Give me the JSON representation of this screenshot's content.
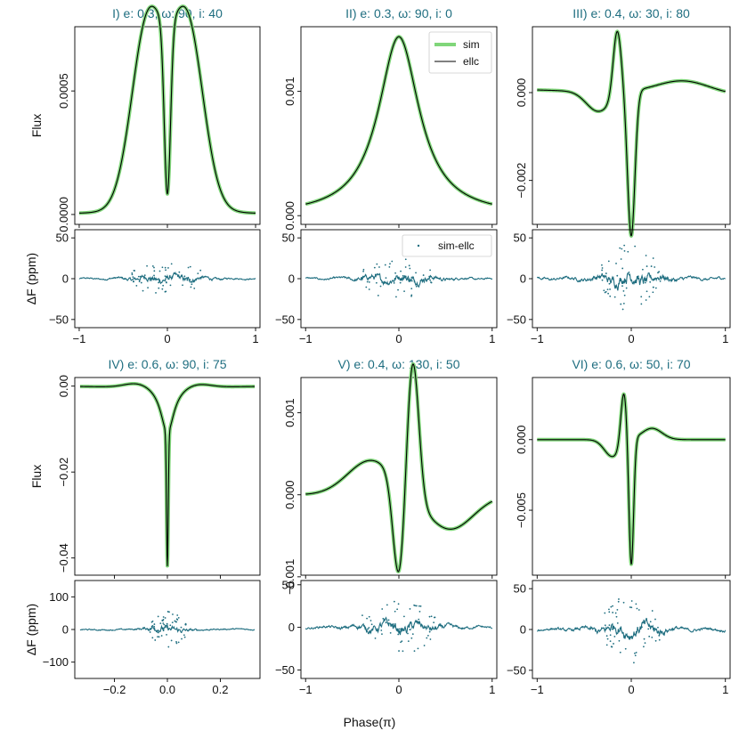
{
  "figure": {
    "xlabel": "Phase(π)",
    "colors": {
      "sim": "#80d67a",
      "ellc": "#000000",
      "resid": "#1f6e80",
      "title": "#1f6e80"
    }
  },
  "chart_data": [
    {
      "type": "line",
      "title": "I) e: 0.3, ω: 90, i: 40",
      "ylabel": "Flux",
      "xlim": [
        -1.05,
        1.05
      ],
      "ylim": [
        -4e-05,
        0.00076
      ],
      "yticks": [
        {
          "v": 0.0,
          "label": "0.0000"
        },
        {
          "v": 0.0005,
          "label": "0.0005"
        }
      ],
      "xticks": [
        {
          "v": -1,
          "label": "−1"
        },
        {
          "v": 0,
          "label": "0"
        },
        {
          "v": 1,
          "label": "1"
        }
      ],
      "series": [
        {
          "name": "sim",
          "shape": "double_peak",
          "x": [
            -1.0,
            0.0,
            1.0
          ],
          "y": [
            0.0,
            2e-05,
            0.0
          ]
        },
        {
          "name": "ellc",
          "shape": "double_peak",
          "x": [
            -1.0,
            0.0,
            1.0
          ],
          "y": [
            0.0,
            2e-05,
            0.0
          ]
        }
      ],
      "peaks": [
        {
          "x": -0.22,
          "y": 0.00073
        },
        {
          "x": 0.22,
          "y": 0.00073
        }
      ],
      "residual": {
        "ylabel": "ΔF (ppm)",
        "ylim": [
          -60,
          60
        ],
        "yticks": [
          -50,
          0,
          50
        ],
        "amplitude": 10,
        "spread": 0.45
      }
    },
    {
      "type": "line",
      "title": "II) e: 0.3, ω: 90, i: 0",
      "ylabel": "",
      "xlim": [
        -1.05,
        1.05
      ],
      "ylim": [
        -7e-05,
        0.00152
      ],
      "yticks": [
        {
          "v": 0.0,
          "label": "0.000"
        },
        {
          "v": 0.001,
          "label": "0.001"
        }
      ],
      "xticks": [
        {
          "v": -1,
          "label": "−1"
        },
        {
          "v": 0,
          "label": "0"
        },
        {
          "v": 1,
          "label": "1"
        }
      ],
      "series": [
        {
          "name": "sim",
          "shape": "single_peak",
          "x": [
            -1.0,
            0.0,
            1.0
          ],
          "y": [
            0.0,
            0.00144,
            0.0
          ]
        },
        {
          "name": "ellc",
          "shape": "single_peak",
          "x": [
            -1.0,
            0.0,
            1.0
          ],
          "y": [
            0.0,
            0.00144,
            0.0
          ]
        }
      ],
      "legend": {
        "entries": [
          "sim",
          "ellc"
        ],
        "placement": "top-right"
      },
      "residual": {
        "ylabel": "",
        "ylim": [
          -60,
          60
        ],
        "yticks": [
          -50,
          0,
          50
        ],
        "amplitude": 12,
        "spread": 0.45,
        "legend": "sim-ellc"
      }
    },
    {
      "type": "line",
      "title": "III) e: 0.4, ω: 30, i: 80",
      "ylabel": "",
      "xlim": [
        -1.05,
        1.05
      ],
      "ylim": [
        -0.003,
        0.0015
      ],
      "yticks": [
        {
          "v": 0.0,
          "label": "0.000"
        },
        {
          "v": -0.002,
          "label": "−0.002"
        }
      ],
      "xticks": [
        {
          "v": -1,
          "label": "−1"
        },
        {
          "v": 0,
          "label": "0"
        },
        {
          "v": 1,
          "label": "1"
        }
      ],
      "series": [
        {
          "name": "sim",
          "shape": "heartbeat_iii",
          "x": [
            -1.0,
            -0.15,
            0.0,
            1.0
          ],
          "y": [
            0.0,
            0.0012,
            -0.0028,
            0.0
          ]
        },
        {
          "name": "ellc",
          "shape": "heartbeat_iii",
          "x": [
            -1.0,
            -0.15,
            0.0,
            1.0
          ],
          "y": [
            0.0,
            0.0012,
            -0.0028,
            0.0
          ]
        }
      ],
      "residual": {
        "ylabel": "",
        "ylim": [
          -60,
          60
        ],
        "yticks": [
          -50,
          0,
          50
        ],
        "amplitude": 20,
        "spread": 0.35
      }
    },
    {
      "type": "line",
      "title": "IV) e: 0.6, ω: 90, i: 75",
      "ylabel": "Flux",
      "xlim": [
        -0.35,
        0.35
      ],
      "ylim": [
        -0.044,
        0.002
      ],
      "yticks": [
        {
          "v": 0.0,
          "label": "0.00"
        },
        {
          "v": -0.02,
          "label": "−0.02"
        },
        {
          "v": -0.04,
          "label": "−0.04"
        }
      ],
      "xticks": [
        {
          "v": -0.2,
          "label": "−0.2"
        },
        {
          "v": 0.0,
          "label": "0.0"
        },
        {
          "v": 0.2,
          "label": "0.2"
        }
      ],
      "series": [
        {
          "name": "sim",
          "shape": "eclipse_iv",
          "x": [
            -0.33,
            0.0,
            0.33
          ],
          "y": [
            0.0,
            -0.0425,
            0.0
          ]
        },
        {
          "name": "ellc",
          "shape": "eclipse_iv",
          "x": [
            -0.33,
            0.0,
            0.33
          ],
          "y": [
            0.0,
            -0.0425,
            0.0
          ]
        }
      ],
      "residual": {
        "ylabel": "ΔF (ppm)",
        "ylim": [
          -150,
          150
        ],
        "yticks": [
          -100,
          0,
          100
        ],
        "amplitude": 25,
        "spread": 0.08
      }
    },
    {
      "type": "line",
      "title": "V) e: 0.4, ω: 130, i: 50",
      "ylabel": "",
      "xlim": [
        -1.05,
        1.05
      ],
      "ylim": [
        -0.00098,
        0.00143
      ],
      "yticks": [
        {
          "v": 0.001,
          "label": "0.001"
        },
        {
          "v": 0.0,
          "label": "0.000"
        },
        {
          "v": -0.001,
          "label": "−0.001"
        }
      ],
      "xticks": [
        {
          "v": -1,
          "label": "−1"
        },
        {
          "v": 0,
          "label": "0"
        },
        {
          "v": 1,
          "label": "1"
        }
      ],
      "series": [
        {
          "name": "sim",
          "shape": "heartbeat_v",
          "x": [
            -1.0,
            -0.3,
            0.0,
            0.15,
            1.0
          ],
          "y": [
            0.0,
            0.00035,
            -0.00088,
            0.00128,
            0.0
          ]
        },
        {
          "name": "ellc",
          "shape": "heartbeat_v",
          "x": [
            -1.0,
            -0.3,
            0.0,
            0.15,
            1.0
          ],
          "y": [
            0.0,
            0.00035,
            -0.00088,
            0.00128,
            0.0
          ]
        }
      ],
      "residual": {
        "ylabel": "",
        "ylim": [
          -60,
          55
        ],
        "yticks": [
          -50,
          0,
          50
        ],
        "amplitude": 15,
        "spread": 0.45
      }
    },
    {
      "type": "line",
      "title": "VI) e: 0.6, ω: 50, i: 70",
      "ylabel": "",
      "xlim": [
        -1.05,
        1.05
      ],
      "ylim": [
        -0.0096,
        0.0044
      ],
      "yticks": [
        {
          "v": 0.0,
          "label": "0.000"
        },
        {
          "v": -0.005,
          "label": "−0.005"
        }
      ],
      "xticks": [
        {
          "v": -1,
          "label": "−1"
        },
        {
          "v": 0,
          "label": "0"
        },
        {
          "v": 1,
          "label": "1"
        }
      ],
      "series": [
        {
          "name": "sim",
          "shape": "heartbeat_vi",
          "x": [
            -1.0,
            -0.08,
            0.0,
            1.0
          ],
          "y": [
            0.0,
            0.0034,
            -0.0088,
            0.0
          ]
        },
        {
          "name": "ellc",
          "shape": "heartbeat_vi",
          "x": [
            -1.0,
            -0.08,
            0.0,
            1.0
          ],
          "y": [
            0.0,
            0.0034,
            -0.0088,
            0.0
          ]
        }
      ],
      "residual": {
        "ylabel": "",
        "ylim": [
          -60,
          60
        ],
        "yticks": [
          -50,
          0,
          50
        ],
        "amplitude": 20,
        "spread": 0.35
      }
    }
  ]
}
